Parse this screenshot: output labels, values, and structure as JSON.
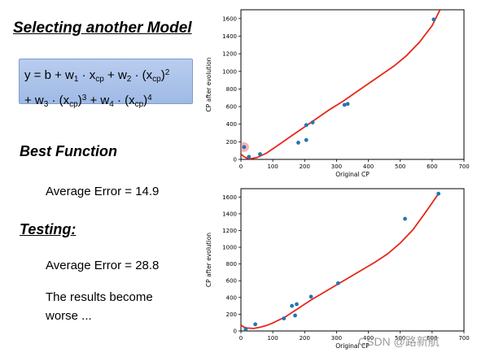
{
  "slide": {
    "title": "Selecting another Model",
    "formula": {
      "line1": [
        {
          "t": "y = b + w"
        },
        {
          "sub": "1"
        },
        {
          "t": " · x"
        },
        {
          "sub": "cp"
        },
        {
          "t": " + w"
        },
        {
          "sub": "2"
        },
        {
          "t": " · (x"
        },
        {
          "sub": "cp"
        },
        {
          "t": ")"
        },
        {
          "sup": "2"
        }
      ],
      "line2": [
        {
          "t": "+ w"
        },
        {
          "sub": "3"
        },
        {
          "t": " · (x"
        },
        {
          "sub": "cp"
        },
        {
          "t": ")"
        },
        {
          "sup": "3"
        },
        {
          "t": " + w"
        },
        {
          "sub": "4"
        },
        {
          "t": " · (x"
        },
        {
          "sub": "cp"
        },
        {
          "t": ")"
        },
        {
          "sup": "4"
        }
      ]
    },
    "best_function_heading": "Best Function",
    "best_function_error": "Average Error = 14.9",
    "testing_heading": "Testing:",
    "testing_error": "Average Error = 28.8",
    "result_line1": "The results become",
    "result_line2": "worse ...",
    "watermark": "CSDN @路新航"
  },
  "colors": {
    "points": "#1f77b4",
    "curve": "#e8261a",
    "highlight": "#f08080"
  },
  "chart_data": [
    {
      "type": "scatter",
      "xlabel": "Original CP",
      "ylabel": "CP after evolution",
      "xlim": [
        0,
        700
      ],
      "ylim": [
        0,
        1700
      ],
      "xticks": [
        0,
        100,
        200,
        300,
        400,
        500,
        600,
        700
      ],
      "yticks": [
        0,
        200,
        400,
        600,
        800,
        1000,
        1200,
        1400,
        1600
      ],
      "points": [
        [
          10,
          140
        ],
        [
          25,
          30
        ],
        [
          60,
          60
        ],
        [
          180,
          190
        ],
        [
          205,
          220
        ],
        [
          205,
          390
        ],
        [
          225,
          420
        ],
        [
          325,
          620
        ],
        [
          335,
          630
        ],
        [
          605,
          1590
        ]
      ],
      "highlight_point": [
        10,
        140
      ],
      "curve": [
        [
          0,
          60
        ],
        [
          10,
          30
        ],
        [
          20,
          12
        ],
        [
          30,
          8
        ],
        [
          50,
          20
        ],
        [
          80,
          70
        ],
        [
          120,
          170
        ],
        [
          160,
          270
        ],
        [
          200,
          370
        ],
        [
          240,
          470
        ],
        [
          280,
          570
        ],
        [
          320,
          660
        ],
        [
          360,
          760
        ],
        [
          400,
          860
        ],
        [
          440,
          960
        ],
        [
          480,
          1060
        ],
        [
          520,
          1180
        ],
        [
          560,
          1330
        ],
        [
          600,
          1520
        ],
        [
          625,
          1700
        ]
      ]
    },
    {
      "type": "scatter",
      "xlabel": "Original CP",
      "ylabel": "CP after evolution",
      "xlim": [
        0,
        700
      ],
      "ylim": [
        0,
        1700
      ],
      "xticks": [
        0,
        100,
        200,
        300,
        400,
        500,
        600,
        700
      ],
      "yticks": [
        0,
        200,
        400,
        600,
        800,
        1000,
        1200,
        1400,
        1600
      ],
      "points": [
        [
          15,
          20
        ],
        [
          45,
          80
        ],
        [
          135,
          150
        ],
        [
          160,
          300
        ],
        [
          170,
          185
        ],
        [
          175,
          320
        ],
        [
          220,
          410
        ],
        [
          305,
          570
        ],
        [
          515,
          1340
        ],
        [
          620,
          1640
        ]
      ],
      "curve": [
        [
          0,
          70
        ],
        [
          10,
          45
        ],
        [
          20,
          35
        ],
        [
          40,
          30
        ],
        [
          60,
          45
        ],
        [
          80,
          65
        ],
        [
          100,
          95
        ],
        [
          140,
          170
        ],
        [
          180,
          270
        ],
        [
          220,
          370
        ],
        [
          260,
          460
        ],
        [
          300,
          550
        ],
        [
          340,
          640
        ],
        [
          380,
          730
        ],
        [
          420,
          820
        ],
        [
          460,
          920
        ],
        [
          500,
          1050
        ],
        [
          540,
          1210
        ],
        [
          580,
          1420
        ],
        [
          620,
          1640
        ]
      ]
    }
  ]
}
